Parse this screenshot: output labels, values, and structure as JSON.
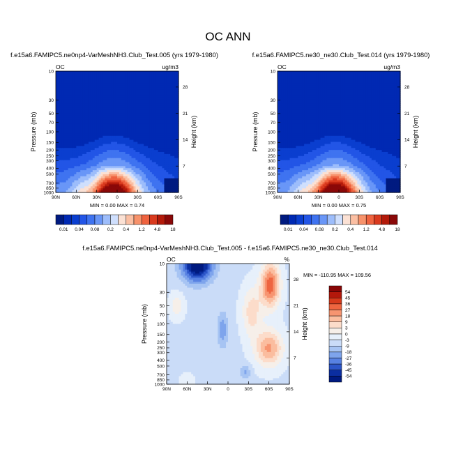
{
  "figure": {
    "title": "OC ANN"
  },
  "chart_data": [
    {
      "type": "heatmap",
      "panel": "left",
      "title": "f.e15a6.FAMIPC5.ne0np4-VarMeshNH3.Club_Test.005 (yrs 1979-1980)",
      "variable_label": "OC",
      "units_label": "ug/m3",
      "ylabel": "Pressure (mb)",
      "ylabel_right": "Height (km)",
      "x_ticks": [
        "90N",
        "60N",
        "30N",
        "0",
        "30S",
        "60S",
        "90S"
      ],
      "y_ticks": [
        "10",
        "30",
        "50",
        "70",
        "100",
        "150",
        "200",
        "250",
        "300",
        "400",
        "500",
        "700",
        "850",
        "1000"
      ],
      "y_ticks_right": [
        "28",
        "21",
        "14",
        "7"
      ],
      "stats": "MIN =   0.00  MAX =   0.74",
      "min": 0.0,
      "max": 0.74,
      "colorbar_labels": [
        "0.01",
        "0.04",
        "0.08",
        "0.2",
        "0.4",
        "1.2",
        "4.8",
        "18"
      ]
    },
    {
      "type": "heatmap",
      "panel": "right",
      "title": "f.e15a6.FAMIPC5.ne30_ne30.Club_Test.014 (yrs 1979-1980)",
      "variable_label": "OC",
      "units_label": "ug/m3",
      "ylabel": "Pressure (mb)",
      "ylabel_right": "Height (km)",
      "x_ticks": [
        "90N",
        "60N",
        "30N",
        "0",
        "30S",
        "60S",
        "90S"
      ],
      "y_ticks": [
        "10",
        "30",
        "50",
        "70",
        "100",
        "150",
        "200",
        "250",
        "300",
        "400",
        "500",
        "700",
        "850",
        "1000"
      ],
      "y_ticks_right": [
        "28",
        "21",
        "14",
        "7"
      ],
      "stats": "MIN =   0.00  MAX =   0.75",
      "min": 0.0,
      "max": 0.75,
      "colorbar_labels": [
        "0.01",
        "0.04",
        "0.08",
        "0.2",
        "0.4",
        "1.2",
        "4.8",
        "18"
      ]
    },
    {
      "type": "heatmap",
      "panel": "difference",
      "title": "f.e15a6.FAMIPC5.ne0np4-VarMeshNH3.Club_Test.005 - f.e15a6.FAMIPC5.ne30_ne30.Club_Test.014",
      "variable_label": "OC",
      "units_label": "%",
      "ylabel": "Pressure (mb)",
      "ylabel_right": "Height (km)",
      "x_ticks": [
        "90N",
        "60N",
        "30N",
        "0",
        "30S",
        "60S",
        "90S"
      ],
      "y_ticks": [
        "10",
        "30",
        "50",
        "70",
        "100",
        "150",
        "200",
        "250",
        "300",
        "400",
        "500",
        "700",
        "850",
        "1000"
      ],
      "y_ticks_right": [
        "28",
        "21",
        "14",
        "7"
      ],
      "stats": "MIN = -110.95  MAX = 109.56",
      "min": -110.95,
      "max": 109.56,
      "colorbar_labels": [
        "54",
        "45",
        "36",
        "27",
        "18",
        "9",
        "3",
        "0",
        "-3",
        "-9",
        "-18",
        "-27",
        "-36",
        "-45",
        "-54"
      ]
    }
  ],
  "colors": {
    "seq_bins": [
      "#001a80",
      "#0029b3",
      "#0a3ecf",
      "#2255e6",
      "#3f73f0",
      "#6996f7",
      "#9dbdfb",
      "#cfdffd",
      "#fbe1d4",
      "#fbbfa3",
      "#f7926b",
      "#ef633f",
      "#d93a1e",
      "#b31a0a",
      "#8a0808"
    ],
    "div_bins": [
      "#880606",
      "#b3180b",
      "#d63a1c",
      "#ee6540",
      "#f79470",
      "#fbbd9f",
      "#fcdcca",
      "#f6efe9",
      "#e7f0fb",
      "#cadcf8",
      "#a7c4f3",
      "#7ea4ec",
      "#5781e2",
      "#2c55c8",
      "#0b2ea1",
      "#001a80"
    ]
  }
}
